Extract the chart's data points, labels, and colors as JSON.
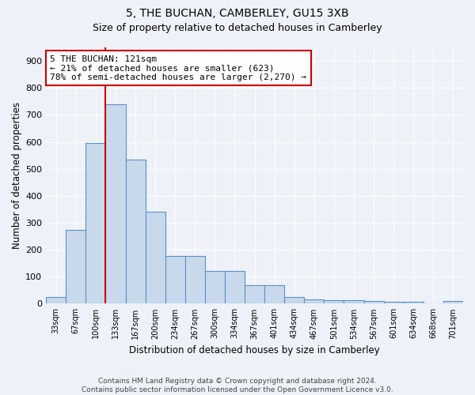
{
  "title": "5, THE BUCHAN, CAMBERLEY, GU15 3XB",
  "subtitle": "Size of property relative to detached houses in Camberley",
  "xlabel": "Distribution of detached houses by size in Camberley",
  "ylabel": "Number of detached properties",
  "bar_values": [
    25,
    275,
    595,
    740,
    535,
    340,
    178,
    178,
    120,
    120,
    68,
    68,
    25,
    15,
    12,
    12,
    10,
    8,
    8,
    2,
    10
  ],
  "categories": [
    "33sqm",
    "67sqm",
    "100sqm",
    "133sqm",
    "167sqm",
    "200sqm",
    "234sqm",
    "267sqm",
    "300sqm",
    "334sqm",
    "367sqm",
    "401sqm",
    "434sqm",
    "467sqm",
    "501sqm",
    "534sqm",
    "567sqm",
    "601sqm",
    "634sqm",
    "668sqm",
    "701sqm"
  ],
  "bar_color": "#c9d9ec",
  "bar_edge_color": "#5b8fc9",
  "vline_color": "#cc0000",
  "annotation_text": "5 THE BUCHAN: 121sqm\n← 21% of detached houses are smaller (623)\n78% of semi-detached houses are larger (2,270) →",
  "annotation_box_color": "#cc0000",
  "ylim": [
    0,
    950
  ],
  "yticks": [
    0,
    100,
    200,
    300,
    400,
    500,
    600,
    700,
    800,
    900
  ],
  "footer1": "Contains HM Land Registry data © Crown copyright and database right 2024.",
  "footer2": "Contains public sector information licensed under the Open Government Licence v3.0.",
  "bg_color": "#eef2f8",
  "plot_bg_color": "#eef2f8",
  "title_fontsize": 10,
  "subtitle_fontsize": 9
}
